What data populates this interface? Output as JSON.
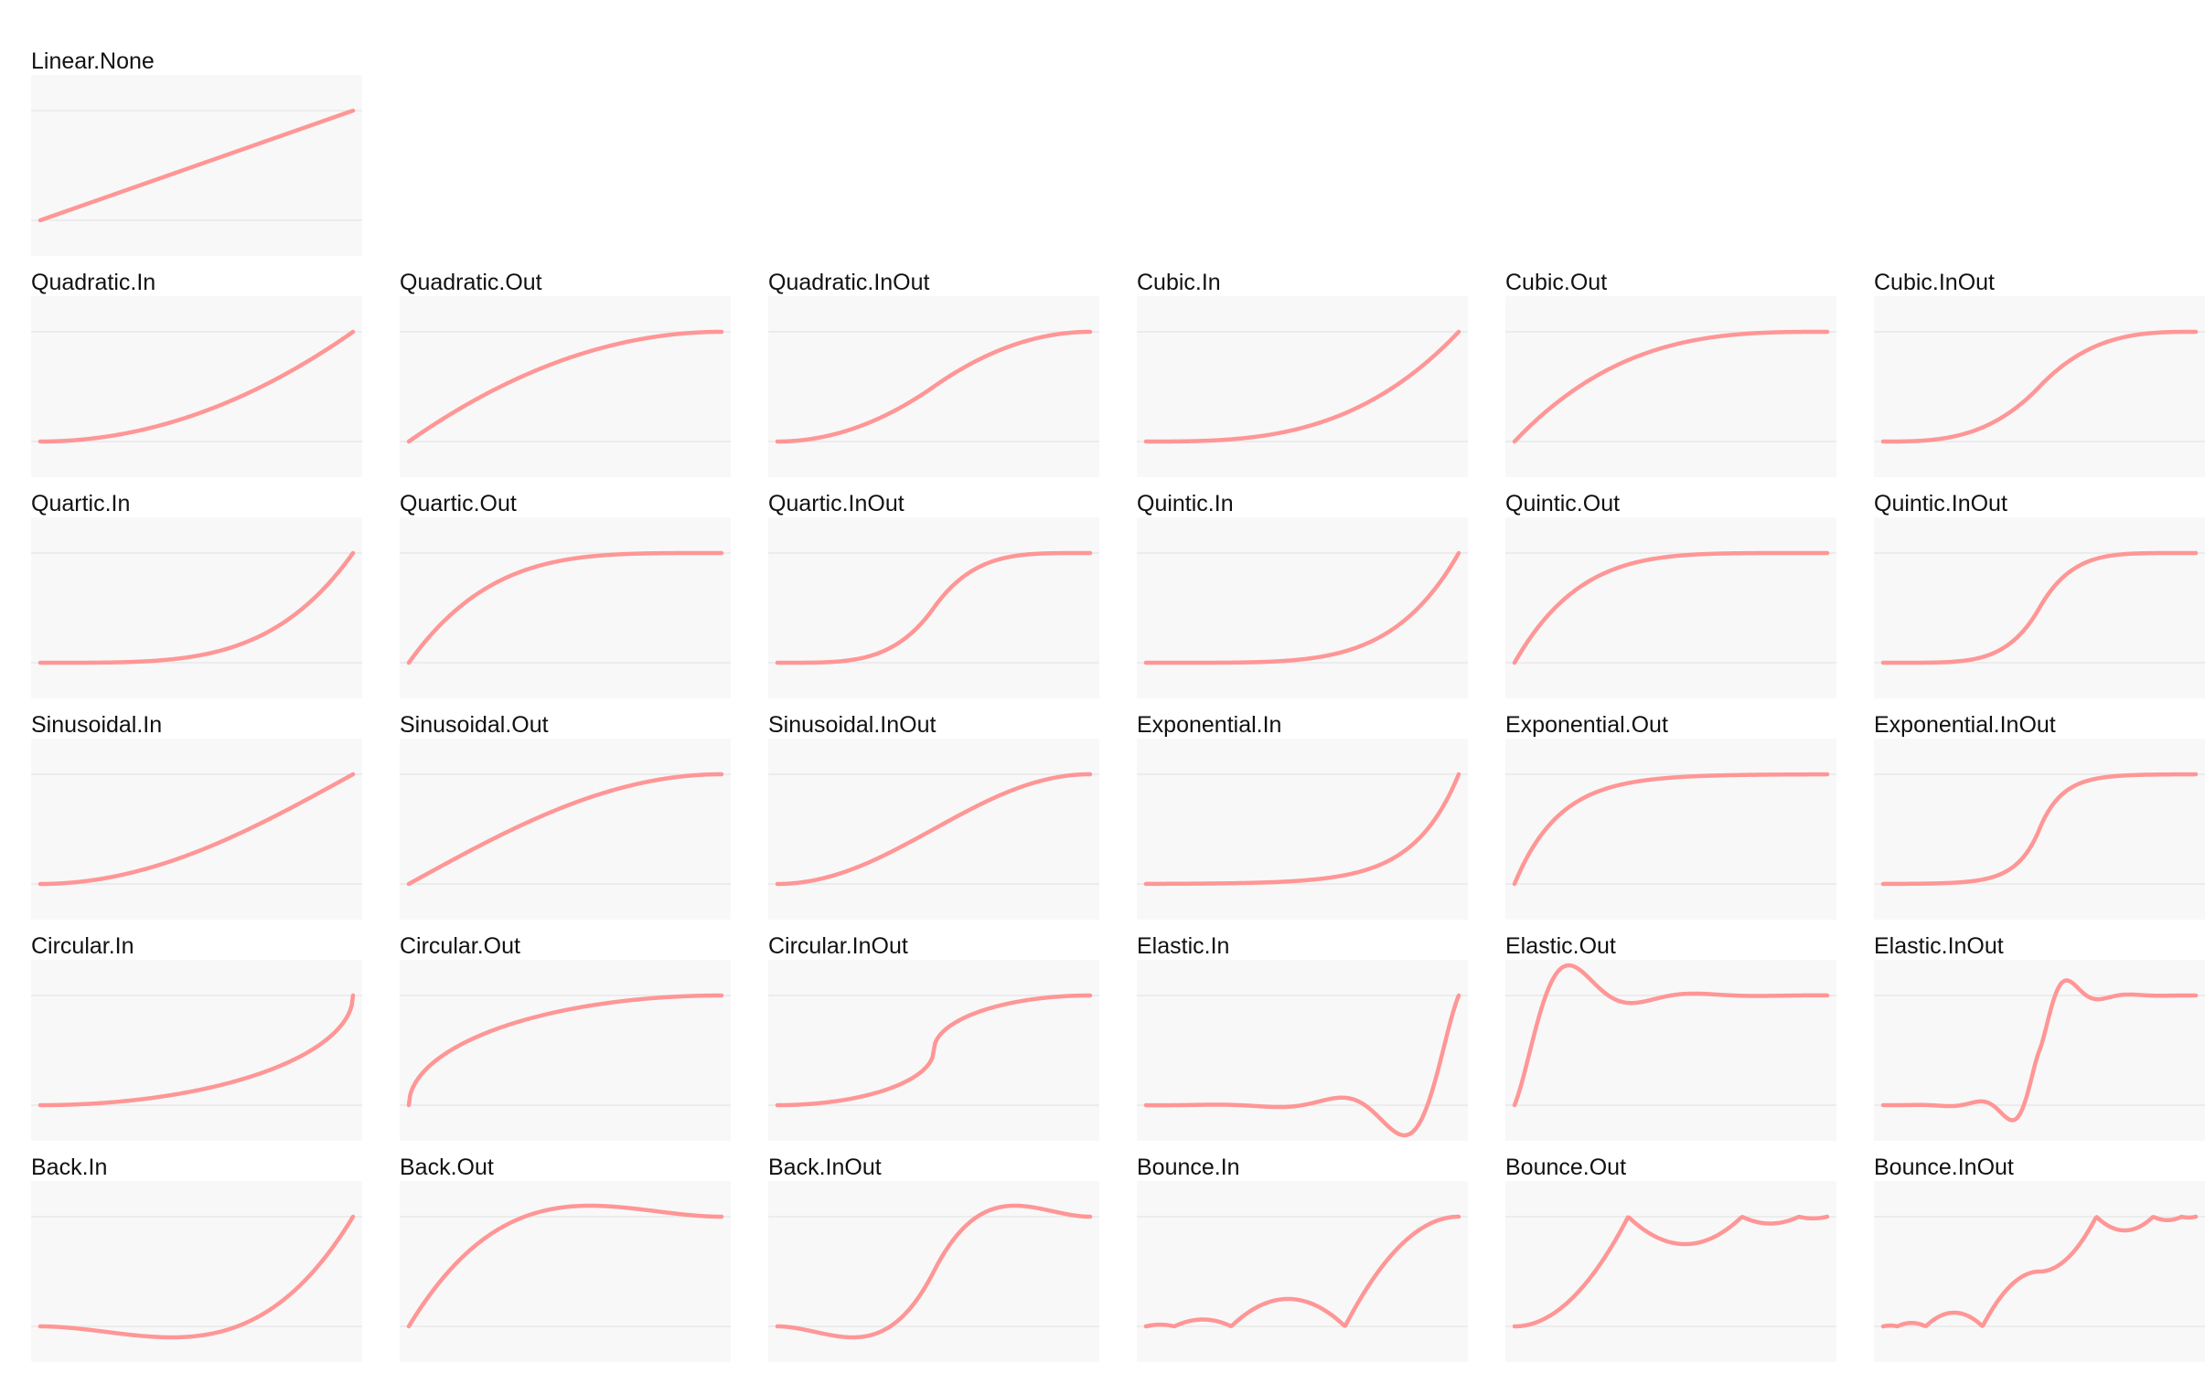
{
  "chart_data": [
    {
      "type": "line",
      "title": "Linear.None",
      "easing": "linear",
      "ylim": [
        0,
        1
      ]
    },
    {
      "type": "line",
      "title": "Quadratic.In",
      "easing": "quadIn",
      "ylim": [
        0,
        1
      ]
    },
    {
      "type": "line",
      "title": "Quadratic.Out",
      "easing": "quadOut",
      "ylim": [
        0,
        1
      ]
    },
    {
      "type": "line",
      "title": "Quadratic.InOut",
      "easing": "quadInOut",
      "ylim": [
        0,
        1
      ]
    },
    {
      "type": "line",
      "title": "Cubic.In",
      "easing": "cubicIn",
      "ylim": [
        0,
        1
      ]
    },
    {
      "type": "line",
      "title": "Cubic.Out",
      "easing": "cubicOut",
      "ylim": [
        0,
        1
      ]
    },
    {
      "type": "line",
      "title": "Cubic.InOut",
      "easing": "cubicInOut",
      "ylim": [
        0,
        1
      ]
    },
    {
      "type": "line",
      "title": "Quartic.In",
      "easing": "quartIn",
      "ylim": [
        0,
        1
      ]
    },
    {
      "type": "line",
      "title": "Quartic.Out",
      "easing": "quartOut",
      "ylim": [
        0,
        1
      ]
    },
    {
      "type": "line",
      "title": "Quartic.InOut",
      "easing": "quartInOut",
      "ylim": [
        0,
        1
      ]
    },
    {
      "type": "line",
      "title": "Quintic.In",
      "easing": "quintIn",
      "ylim": [
        0,
        1
      ]
    },
    {
      "type": "line",
      "title": "Quintic.Out",
      "easing": "quintOut",
      "ylim": [
        0,
        1
      ]
    },
    {
      "type": "line",
      "title": "Quintic.InOut",
      "easing": "quintInOut",
      "ylim": [
        0,
        1
      ]
    },
    {
      "type": "line",
      "title": "Sinusoidal.In",
      "easing": "sineIn",
      "ylim": [
        0,
        1
      ]
    },
    {
      "type": "line",
      "title": "Sinusoidal.Out",
      "easing": "sineOut",
      "ylim": [
        0,
        1
      ]
    },
    {
      "type": "line",
      "title": "Sinusoidal.InOut",
      "easing": "sineInOut",
      "ylim": [
        0,
        1
      ]
    },
    {
      "type": "line",
      "title": "Exponential.In",
      "easing": "expoIn",
      "ylim": [
        0,
        1
      ]
    },
    {
      "type": "line",
      "title": "Exponential.Out",
      "easing": "expoOut",
      "ylim": [
        0,
        1
      ]
    },
    {
      "type": "line",
      "title": "Exponential.InOut",
      "easing": "expoInOut",
      "ylim": [
        0,
        1
      ]
    },
    {
      "type": "line",
      "title": "Circular.In",
      "easing": "circIn",
      "ylim": [
        0,
        1
      ]
    },
    {
      "type": "line",
      "title": "Circular.Out",
      "easing": "circOut",
      "ylim": [
        0,
        1
      ]
    },
    {
      "type": "line",
      "title": "Circular.InOut",
      "easing": "circInOut",
      "ylim": [
        0,
        1
      ]
    },
    {
      "type": "line",
      "title": "Elastic.In",
      "easing": "elasticIn",
      "ylim": [
        0,
        1
      ]
    },
    {
      "type": "line",
      "title": "Elastic.Out",
      "easing": "elasticOut",
      "ylim": [
        0,
        1
      ]
    },
    {
      "type": "line",
      "title": "Elastic.InOut",
      "easing": "elasticInOut",
      "ylim": [
        0,
        1
      ]
    },
    {
      "type": "line",
      "title": "Back.In",
      "easing": "backIn",
      "ylim": [
        0,
        1
      ]
    },
    {
      "type": "line",
      "title": "Back.Out",
      "easing": "backOut",
      "ylim": [
        0,
        1
      ]
    },
    {
      "type": "line",
      "title": "Back.InOut",
      "easing": "backInOut",
      "ylim": [
        0,
        1
      ]
    },
    {
      "type": "line",
      "title": "Bounce.In",
      "easing": "bounceIn",
      "ylim": [
        0,
        1
      ]
    },
    {
      "type": "line",
      "title": "Bounce.Out",
      "easing": "bounceOut",
      "ylim": [
        0,
        1
      ]
    },
    {
      "type": "line",
      "title": "Bounce.InOut",
      "easing": "bounceInOut",
      "ylim": [
        0,
        1
      ]
    }
  ],
  "colors": {
    "curve": "#ff9696",
    "plot_background": "#f8f8f8",
    "guide_line": "#ececec",
    "label_text": "#111111"
  }
}
